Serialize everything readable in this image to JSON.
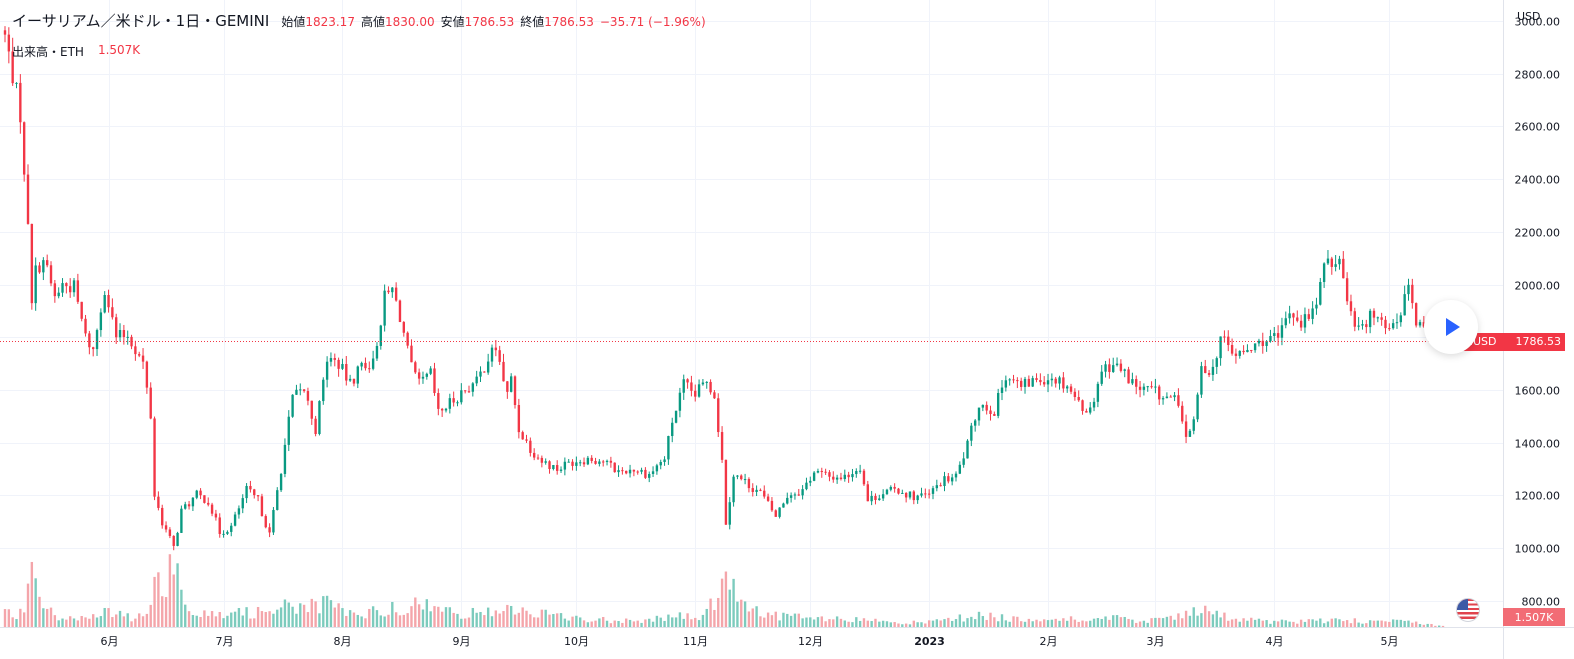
{
  "header": {
    "symbol_title": "イーサリアム／米ドル・1日・GEMINI",
    "open_label": "始値",
    "open_value": "1823.17",
    "high_label": "高値",
    "high_value": "1830.00",
    "low_label": "安値",
    "low_value": "1786.53",
    "close_label": "終値",
    "close_value": "1786.53",
    "change": "−35.71 (−1.96%)"
  },
  "volume_legend": {
    "label": "出来高・ETH",
    "value": "1.507K"
  },
  "price_axis": {
    "unit": "USD",
    "ticks": [
      "3000.00",
      "2800.00",
      "2600.00",
      "2400.00",
      "2200.00",
      "2000.00",
      "1800.00",
      "1600.00",
      "1400.00",
      "1200.00",
      "1000.00",
      "800.00"
    ]
  },
  "current_price_tag": {
    "symbol": "ETHUSD",
    "value": "1786.53"
  },
  "volume_tag": "1.507K",
  "colors": {
    "up": "#089981",
    "down": "#f23645",
    "up_volume": "#7ccbbd",
    "down_volume": "#f4a5aa",
    "grid": "#f0f3fa",
    "axis_text": "#131722"
  },
  "icons": [
    "play-icon",
    "us-flag-icon"
  ],
  "chart_data": {
    "type": "candlestick",
    "symbol": "ETHUSD",
    "currency": "USD",
    "interval": "1D",
    "ylim": [
      700,
      3080
    ],
    "grid": true,
    "x_ticks": [
      {
        "label": "6月",
        "date": "2022-06-01"
      },
      {
        "label": "7月",
        "date": "2022-07-01"
      },
      {
        "label": "8月",
        "date": "2022-08-01"
      },
      {
        "label": "9月",
        "date": "2022-09-01"
      },
      {
        "label": "10月",
        "date": "2022-10-01"
      },
      {
        "label": "11月",
        "date": "2022-11-01"
      },
      {
        "label": "12月",
        "date": "2022-12-01"
      },
      {
        "label": "2023",
        "date": "2023-01-01"
      },
      {
        "label": "2月",
        "date": "2023-02-01"
      },
      {
        "label": "3月",
        "date": "2023-03-01"
      },
      {
        "label": "4月",
        "date": "2023-04-01"
      },
      {
        "label": "5月",
        "date": "2023-05-01"
      }
    ],
    "start_date": "2022-05-05",
    "end_date": "2023-05-15",
    "last_close": 1786.53,
    "close_points": [
      [
        "2022-05-05",
        2940
      ],
      [
        "2022-05-07",
        2800
      ],
      [
        "2022-05-09",
        2650
      ],
      [
        "2022-05-10",
        2400
      ],
      [
        "2022-05-11",
        2250
      ],
      [
        "2022-05-12",
        1950
      ],
      [
        "2022-05-13",
        2050
      ],
      [
        "2022-05-15",
        2100
      ],
      [
        "2022-05-18",
        1950
      ],
      [
        "2022-05-20",
        2000
      ],
      [
        "2022-05-23",
        1990
      ],
      [
        "2022-05-26",
        1800
      ],
      [
        "2022-05-28",
        1750
      ],
      [
        "2022-05-31",
        1990
      ],
      [
        "2022-06-03",
        1800
      ],
      [
        "2022-06-06",
        1810
      ],
      [
        "2022-06-10",
        1700
      ],
      [
        "2022-06-12",
        1500
      ],
      [
        "2022-06-13",
        1200
      ],
      [
        "2022-06-15",
        1100
      ],
      [
        "2022-06-18",
        1000
      ],
      [
        "2022-06-20",
        1140
      ],
      [
        "2022-06-24",
        1200
      ],
      [
        "2022-06-27",
        1180
      ],
      [
        "2022-06-30",
        1060
      ],
      [
        "2022-07-03",
        1080
      ],
      [
        "2022-07-07",
        1220
      ],
      [
        "2022-07-10",
        1180
      ],
      [
        "2022-07-13",
        1050
      ],
      [
        "2022-07-16",
        1300
      ],
      [
        "2022-07-19",
        1570
      ],
      [
        "2022-07-22",
        1600
      ],
      [
        "2022-07-25",
        1450
      ],
      [
        "2022-07-28",
        1720
      ],
      [
        "2022-07-31",
        1700
      ],
      [
        "2022-08-03",
        1620
      ],
      [
        "2022-08-06",
        1700
      ],
      [
        "2022-08-09",
        1700
      ],
      [
        "2022-08-12",
        1950
      ],
      [
        "2022-08-14",
        1980
      ],
      [
        "2022-08-16",
        1880
      ],
      [
        "2022-08-19",
        1680
      ],
      [
        "2022-08-21",
        1620
      ],
      [
        "2022-08-24",
        1660
      ],
      [
        "2022-08-26",
        1510
      ],
      [
        "2022-08-29",
        1550
      ],
      [
        "2022-09-01",
        1590
      ],
      [
        "2022-09-05",
        1630
      ],
      [
        "2022-09-08",
        1720
      ],
      [
        "2022-09-10",
        1760
      ],
      [
        "2022-09-13",
        1580
      ],
      [
        "2022-09-14",
        1640
      ],
      [
        "2022-09-16",
        1450
      ],
      [
        "2022-09-19",
        1380
      ],
      [
        "2022-09-22",
        1330
      ],
      [
        "2022-09-26",
        1300
      ],
      [
        "2022-09-30",
        1330
      ],
      [
        "2022-10-04",
        1340
      ],
      [
        "2022-10-08",
        1330
      ],
      [
        "2022-10-12",
        1290
      ],
      [
        "2022-10-16",
        1300
      ],
      [
        "2022-10-20",
        1280
      ],
      [
        "2022-10-24",
        1340
      ],
      [
        "2022-10-26",
        1480
      ],
      [
        "2022-10-29",
        1620
      ],
      [
        "2022-11-01",
        1580
      ],
      [
        "2022-11-04",
        1640
      ],
      [
        "2022-11-06",
        1580
      ],
      [
        "2022-11-08",
        1330
      ],
      [
        "2022-11-09",
        1100
      ],
      [
        "2022-11-11",
        1280
      ],
      [
        "2022-11-14",
        1250
      ],
      [
        "2022-11-18",
        1210
      ],
      [
        "2022-11-22",
        1120
      ],
      [
        "2022-11-25",
        1200
      ],
      [
        "2022-11-29",
        1220
      ],
      [
        "2022-12-02",
        1290
      ],
      [
        "2022-12-06",
        1270
      ],
      [
        "2022-12-10",
        1270
      ],
      [
        "2022-12-14",
        1310
      ],
      [
        "2022-12-16",
        1180
      ],
      [
        "2022-12-20",
        1210
      ],
      [
        "2022-12-24",
        1220
      ],
      [
        "2022-12-28",
        1195
      ],
      [
        "2023-01-01",
        1200
      ],
      [
        "2023-01-04",
        1250
      ],
      [
        "2023-01-08",
        1270
      ],
      [
        "2023-01-11",
        1390
      ],
      [
        "2023-01-14",
        1550
      ],
      [
        "2023-01-18",
        1520
      ],
      [
        "2023-01-21",
        1660
      ],
      [
        "2023-01-25",
        1610
      ],
      [
        "2023-01-29",
        1640
      ],
      [
        "2023-02-02",
        1650
      ],
      [
        "2023-02-06",
        1620
      ],
      [
        "2023-02-09",
        1550
      ],
      [
        "2023-02-12",
        1520
      ],
      [
        "2023-02-15",
        1680
      ],
      [
        "2023-02-18",
        1700
      ],
      [
        "2023-02-21",
        1660
      ],
      [
        "2023-02-25",
        1600
      ],
      [
        "2023-02-28",
        1600
      ],
      [
        "2023-03-03",
        1570
      ],
      [
        "2023-03-06",
        1565
      ],
      [
        "2023-03-09",
        1430
      ],
      [
        "2023-03-11",
        1470
      ],
      [
        "2023-03-13",
        1680
      ],
      [
        "2023-03-16",
        1680
      ],
      [
        "2023-03-18",
        1800
      ],
      [
        "2023-03-22",
        1730
      ],
      [
        "2023-03-26",
        1750
      ],
      [
        "2023-03-29",
        1790
      ],
      [
        "2023-04-02",
        1790
      ],
      [
        "2023-04-05",
        1900
      ],
      [
        "2023-04-08",
        1860
      ],
      [
        "2023-04-11",
        1890
      ],
      [
        "2023-04-13",
        2000
      ],
      [
        "2023-04-15",
        2100
      ],
      [
        "2023-04-18",
        2090
      ],
      [
        "2023-04-20",
        1950
      ],
      [
        "2023-04-22",
        1860
      ],
      [
        "2023-04-25",
        1860
      ],
      [
        "2023-04-28",
        1900
      ],
      [
        "2023-05-01",
        1830
      ],
      [
        "2023-05-04",
        1900
      ],
      [
        "2023-05-06",
        1990
      ],
      [
        "2023-05-08",
        1850
      ],
      [
        "2023-05-12",
        1810
      ],
      [
        "2023-05-15",
        1786.53
      ]
    ],
    "volume_ylim": [
      0,
      1500
    ],
    "volume_points": [
      [
        "2022-05-05",
        170
      ],
      [
        "2022-05-10",
        200
      ],
      [
        "2022-05-12",
        730
      ],
      [
        "2022-05-14",
        360
      ],
      [
        "2022-05-18",
        150
      ],
      [
        "2022-05-25",
        120
      ],
      [
        "2022-06-01",
        190
      ],
      [
        "2022-06-07",
        130
      ],
      [
        "2022-06-12",
        230
      ],
      [
        "2022-06-13",
        700
      ],
      [
        "2022-06-14",
        520
      ],
      [
        "2022-06-18",
        850
      ],
      [
        "2022-06-22",
        260
      ],
      [
        "2022-06-27",
        220
      ],
      [
        "2022-07-05",
        180
      ],
      [
        "2022-07-12",
        220
      ],
      [
        "2022-07-17",
        350
      ],
      [
        "2022-07-20",
        250
      ],
      [
        "2022-07-28",
        300
      ],
      [
        "2022-08-05",
        150
      ],
      [
        "2022-08-13",
        250
      ],
      [
        "2022-08-19",
        300
      ],
      [
        "2022-08-28",
        220
      ],
      [
        "2022-09-06",
        170
      ],
      [
        "2022-09-14",
        260
      ],
      [
        "2022-09-19",
        200
      ],
      [
        "2022-09-28",
        130
      ],
      [
        "2022-10-10",
        90
      ],
      [
        "2022-10-20",
        100
      ],
      [
        "2022-10-29",
        150
      ],
      [
        "2022-11-03",
        130
      ],
      [
        "2022-11-08",
        520
      ],
      [
        "2022-11-09",
        900
      ],
      [
        "2022-11-12",
        280
      ],
      [
        "2022-11-20",
        180
      ],
      [
        "2022-12-01",
        110
      ],
      [
        "2022-12-15",
        90
      ],
      [
        "2022-12-28",
        60
      ],
      [
        "2023-01-03",
        80
      ],
      [
        "2023-01-14",
        150
      ],
      [
        "2023-01-25",
        110
      ],
      [
        "2023-02-05",
        100
      ],
      [
        "2023-02-16",
        120
      ],
      [
        "2023-02-28",
        90
      ],
      [
        "2023-03-10",
        160
      ],
      [
        "2023-03-13",
        250
      ],
      [
        "2023-03-20",
        120
      ],
      [
        "2023-04-01",
        70
      ],
      [
        "2023-04-15",
        90
      ],
      [
        "2023-04-25",
        80
      ],
      [
        "2023-05-05",
        70
      ],
      [
        "2023-05-15",
        15
      ]
    ]
  }
}
